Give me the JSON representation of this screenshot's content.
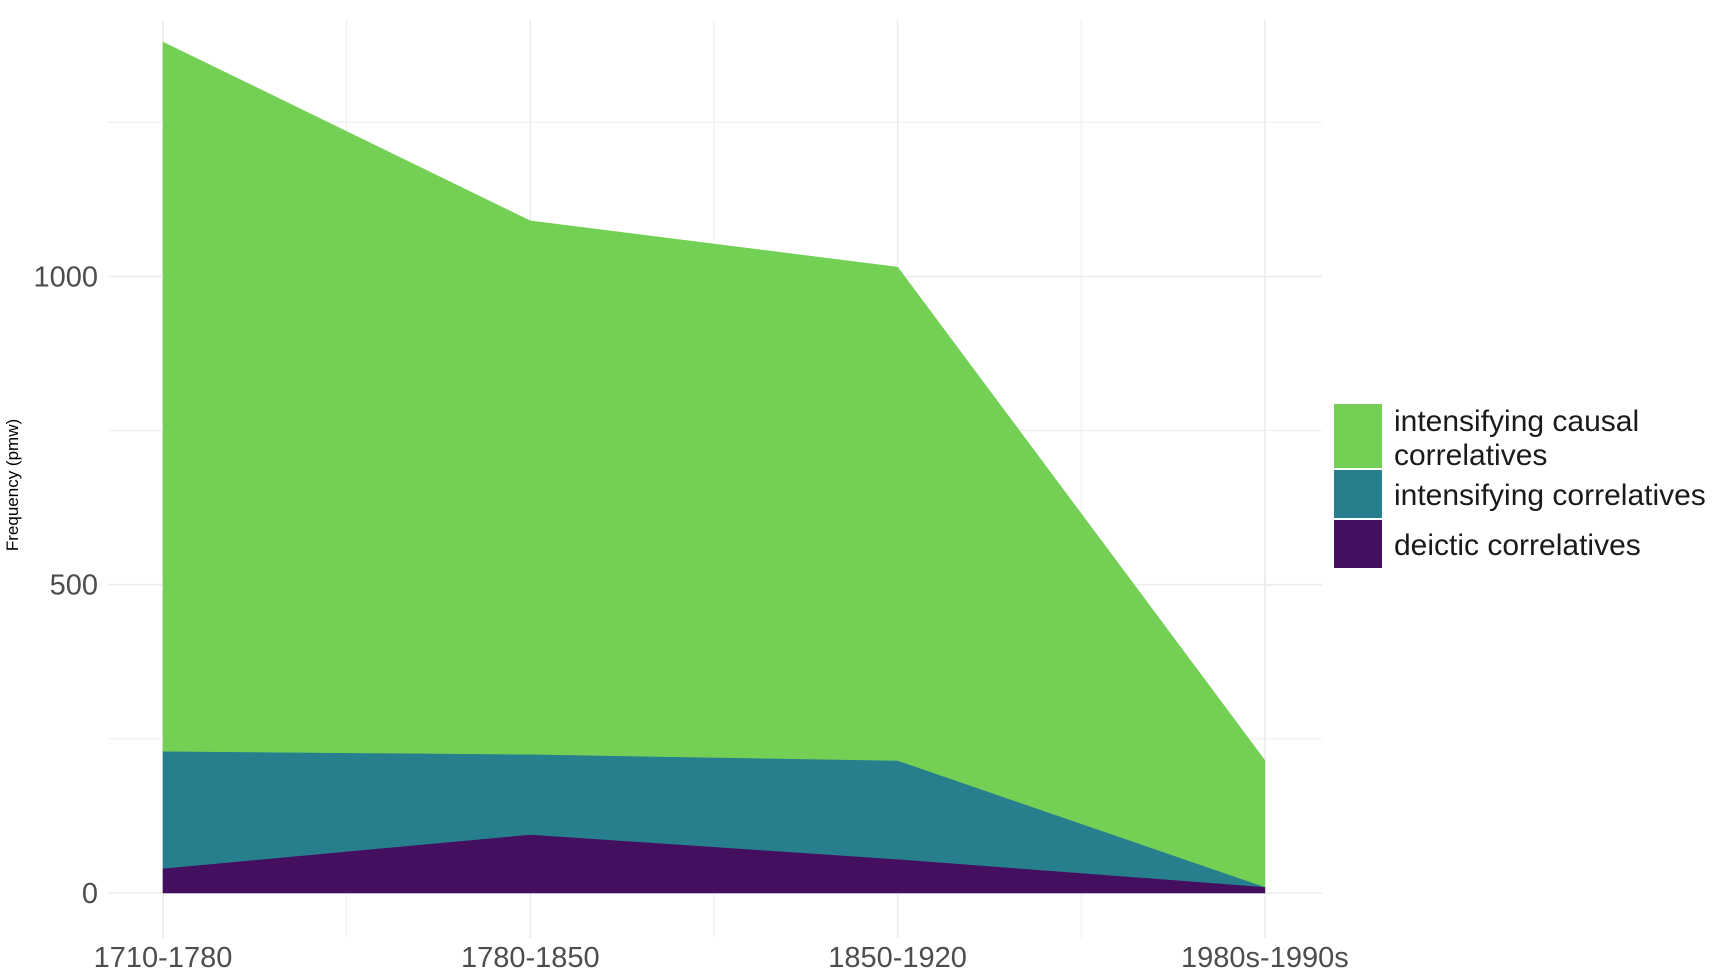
{
  "chart_data": {
    "type": "area",
    "stacked": true,
    "title": "",
    "xlabel": "",
    "ylabel": "Frequency (pmw)",
    "categories": [
      "1710-1780",
      "1780-1850",
      "1850-1920",
      "1980s-1990s"
    ],
    "ylim": [
      0,
      1380
    ],
    "yticks": [
      0,
      500,
      1000
    ],
    "grid": true,
    "legend_position": "right",
    "series": [
      {
        "name": "deictic correlatives",
        "values": [
          40,
          95,
          55,
          10
        ],
        "color": "#440f5f"
      },
      {
        "name": "intensifying correlatives",
        "values": [
          190,
          130,
          160,
          0
        ],
        "color": "#277f8e"
      },
      {
        "name": "intensifying causal correlatives",
        "values": [
          1150,
          865,
          800,
          205
        ],
        "color": "#74d055"
      }
    ],
    "legend": [
      {
        "lines": [
          "intensifying causal",
          "correlatives"
        ],
        "color": "#74d055"
      },
      {
        "lines": [
          "intensifying correlatives"
        ],
        "color": "#277f8e"
      },
      {
        "lines": [
          "deictic correlatives"
        ],
        "color": "#440f5f"
      }
    ]
  }
}
